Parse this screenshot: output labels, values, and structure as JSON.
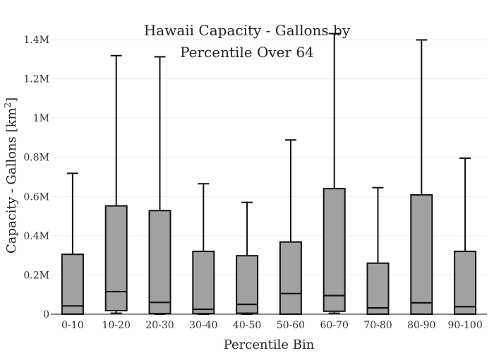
{
  "chart_data": {
    "type": "box",
    "title_line1": "Hawaii Capacity - Gallons by",
    "title_line2": "Percentile Over 64",
    "xlabel": "Percentile Bin",
    "ylabel": "Capacity - Gallons",
    "ylabel_unit": "[km",
    "ylabel_unit_sup": "2",
    "ylabel_unit_close": "]",
    "ylim": [
      0,
      1400000
    ],
    "yticks": [
      {
        "value": 0,
        "label": "0"
      },
      {
        "value": 200000,
        "label": "0.2M"
      },
      {
        "value": 400000,
        "label": "0.4M"
      },
      {
        "value": 600000,
        "label": "0.6M"
      },
      {
        "value": 800000,
        "label": "0.8M"
      },
      {
        "value": 1000000,
        "label": "1M"
      },
      {
        "value": 1200000,
        "label": "1.2M"
      },
      {
        "value": 1400000,
        "label": "1.4M"
      }
    ],
    "categories": [
      "0-10",
      "10-20",
      "20-30",
      "30-40",
      "40-50",
      "50-60",
      "60-70",
      "70-80",
      "80-90",
      "90-100"
    ],
    "boxes": [
      {
        "min": 0,
        "q1": 0,
        "median": 42000,
        "q3": 305000,
        "max": 718000
      },
      {
        "min": 5000,
        "q1": 18000,
        "median": 115000,
        "q3": 552000,
        "max": 1318000
      },
      {
        "min": 0,
        "q1": 3000,
        "median": 60000,
        "q3": 528000,
        "max": 1312000
      },
      {
        "min": 0,
        "q1": 3000,
        "median": 25000,
        "q3": 320000,
        "max": 665000
      },
      {
        "min": 0,
        "q1": 5000,
        "median": 50000,
        "q3": 298000,
        "max": 570000
      },
      {
        "min": 0,
        "q1": 0,
        "median": 105000,
        "q3": 368000,
        "max": 888000
      },
      {
        "min": 5000,
        "q1": 15000,
        "median": 95000,
        "q3": 640000,
        "max": 1430000
      },
      {
        "min": 0,
        "q1": 0,
        "median": 32000,
        "q3": 260000,
        "max": 645000
      },
      {
        "min": 0,
        "q1": 0,
        "median": 58000,
        "q3": 608000,
        "max": 1398000
      },
      {
        "min": 0,
        "q1": 0,
        "median": 38000,
        "q3": 320000,
        "max": 795000
      }
    ],
    "colors": {
      "box_fill": "#a1a1a1",
      "line": "#111111",
      "grid": "#ececec",
      "axis": "#444444"
    },
    "grid": true,
    "legend": "none"
  }
}
